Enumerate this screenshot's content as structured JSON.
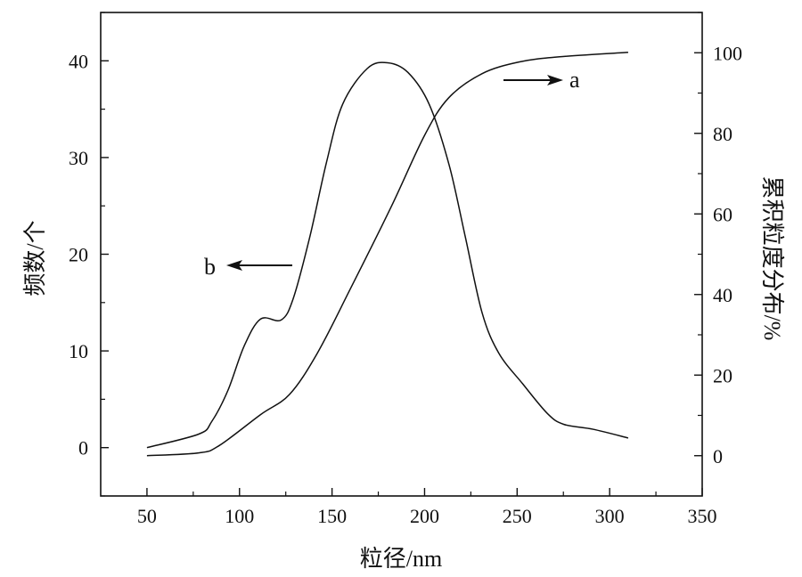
{
  "chart_data": {
    "type": "line",
    "title": "",
    "xlabel": "粒径/nm",
    "ylabel": "频数/个",
    "y2label": "累积粒度分布/%",
    "xlim": [
      25,
      350
    ],
    "ylim": [
      -5,
      45
    ],
    "y2lim": [
      -10,
      110
    ],
    "xticks": [
      50,
      100,
      150,
      200,
      250,
      300,
      350
    ],
    "yticks": [
      0,
      10,
      20,
      30,
      40
    ],
    "y2ticks": [
      0,
      20,
      40,
      60,
      80,
      100
    ],
    "grid": false,
    "series": [
      {
        "name": "b",
        "axis": "left",
        "annotation": "b",
        "arrow_direction": "left",
        "x": [
          50,
          78,
          85,
          93.7,
          102.5,
          111.4,
          122.5,
          129,
          138,
          147,
          155.7,
          169,
          180,
          191,
          202.5,
          213.3,
          222,
          231,
          240,
          253,
          266.5,
          275.3,
          291,
          310
        ],
        "y": [
          0,
          1.4,
          2.7,
          5.9,
          10.5,
          13.3,
          13.2,
          15.4,
          21.8,
          29.5,
          35.5,
          39.2,
          39.8,
          38.8,
          35.5,
          29.2,
          21.8,
          14,
          9.8,
          6.6,
          3.5,
          2.4,
          1.9,
          1
        ]
      },
      {
        "name": "a",
        "axis": "right",
        "annotation": "a",
        "arrow_direction": "right",
        "x": [
          50,
          78,
          89,
          111.4,
          127,
          142,
          160,
          182,
          200,
          213,
          231,
          251,
          273,
          310
        ],
        "y": [
          0,
          0.7,
          2.5,
          10.2,
          15.2,
          25.4,
          41.5,
          61.8,
          79.5,
          88.8,
          94.8,
          97.7,
          99,
          100.1
        ]
      }
    ]
  }
}
